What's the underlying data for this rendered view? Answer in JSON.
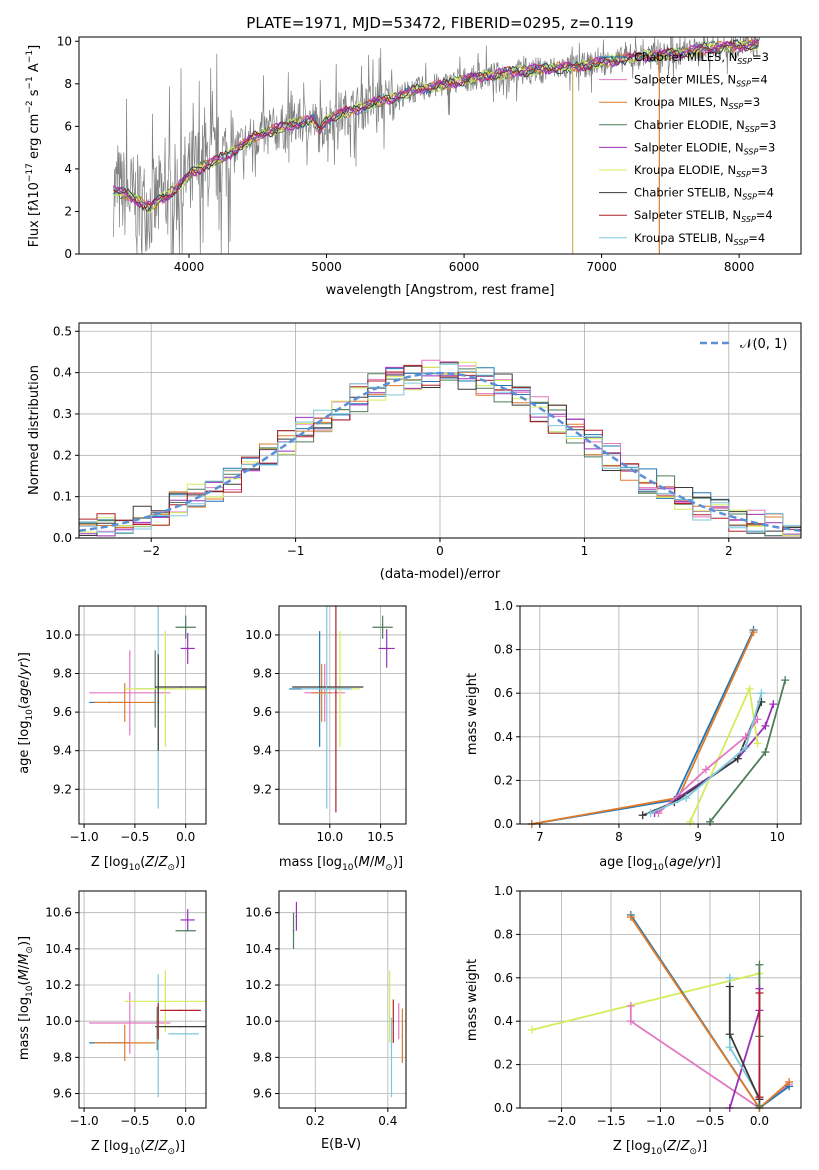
{
  "colors": {
    "chabrier_miles": "#1f77b4",
    "salpeter_miles": "#e377c2",
    "kroupa_miles": "#e07b2a",
    "chabrier_elodie": "#4e7d5b",
    "salpeter_elodie": "#9b30b8",
    "kroupa_elodie": "#d4ec5a",
    "chabrier_stelib": "#3a3a3a",
    "salpeter_stelib": "#b0202a",
    "kroupa_stelib": "#7fc7dd",
    "data_gray": "#808080",
    "normal_curve": "#5b8fd8",
    "grid": "#b0b0b0"
  },
  "chart_data": [
    {
      "id": "spectrum",
      "type": "line",
      "title": "PLATE=1971, MJD=53472, FIBERID=0295, z=0.119",
      "xlabel": "wavelength [Angstrom, rest frame]",
      "ylabel": "Flux [f_λ10^-17 erg cm^-2 s^-1 A^-1]",
      "xlim": [
        3200,
        8450
      ],
      "ylim": [
        0,
        10.2
      ],
      "xticks": [
        "4000",
        "5000",
        "6000",
        "7000",
        "8000"
      ],
      "yticks": [
        "0",
        "2",
        "4",
        "6",
        "8",
        "10"
      ],
      "legend_position": "upper-right",
      "legend": [
        {
          "label": "Chabrier MILES, N_SSP=3",
          "color": "chabrier_miles"
        },
        {
          "label": "Salpeter MILES, N_SSP=4",
          "color": "salpeter_miles"
        },
        {
          "label": "Kroupa MILES, N_SSP=3",
          "color": "kroupa_miles"
        },
        {
          "label": "Chabrier ELODIE, N_SSP=3",
          "color": "chabrier_elodie"
        },
        {
          "label": "Salpeter ELODIE, N_SSP=3",
          "color": "salpeter_elodie"
        },
        {
          "label": "Kroupa ELODIE, N_SSP=3",
          "color": "kroupa_elodie"
        },
        {
          "label": "Chabrier STELIB, N_SSP=4",
          "color": "chabrier_stelib"
        },
        {
          "label": "Salpeter STELIB, N_SSP=4",
          "color": "salpeter_stelib"
        },
        {
          "label": "Kroupa STELIB, N_SSP=4",
          "color": "kroupa_stelib"
        }
      ],
      "continuum": [
        [
          3450,
          3.0
        ],
        [
          3550,
          2.8
        ],
        [
          3650,
          2.4
        ],
        [
          3720,
          2.2
        ],
        [
          3800,
          2.6
        ],
        [
          3900,
          3.0
        ],
        [
          4000,
          3.7
        ],
        [
          4100,
          4.1
        ],
        [
          4200,
          4.4
        ],
        [
          4300,
          4.7
        ],
        [
          4400,
          5.2
        ],
        [
          4500,
          5.6
        ],
        [
          4600,
          5.8
        ],
        [
          4700,
          6.0
        ],
        [
          4800,
          6.2
        ],
        [
          4900,
          6.3
        ],
        [
          4950,
          5.8
        ],
        [
          5000,
          6.3
        ],
        [
          5100,
          6.6
        ],
        [
          5200,
          6.8
        ],
        [
          5300,
          7.0
        ],
        [
          5400,
          7.2
        ],
        [
          5500,
          7.4
        ],
        [
          5600,
          7.6
        ],
        [
          5700,
          7.8
        ],
        [
          5800,
          7.9
        ],
        [
          5900,
          8.0
        ],
        [
          6000,
          8.2
        ],
        [
          6100,
          8.3
        ],
        [
          6200,
          8.4
        ],
        [
          6300,
          8.5
        ],
        [
          6400,
          8.6
        ],
        [
          6500,
          8.65
        ],
        [
          6600,
          8.7
        ],
        [
          6700,
          8.75
        ],
        [
          6800,
          8.8
        ],
        [
          6900,
          8.9
        ],
        [
          7000,
          9.0
        ],
        [
          7100,
          9.1
        ],
        [
          7200,
          9.2
        ],
        [
          7300,
          9.3
        ],
        [
          7400,
          9.35
        ],
        [
          7600,
          9.5
        ],
        [
          7800,
          9.7
        ],
        [
          8000,
          9.8
        ],
        [
          8150,
          9.85
        ]
      ]
    },
    {
      "id": "residuals",
      "type": "histogram",
      "xlabel": "(data-model)/error",
      "ylabel": "Normed distribution",
      "xlim": [
        -2.5,
        2.5
      ],
      "ylim": [
        0,
        0.52
      ],
      "xticks": [
        "−2",
        "−1",
        "0",
        "1",
        "2"
      ],
      "yticks": [
        "0.0",
        "0.1",
        "0.2",
        "0.3",
        "0.4",
        "0.5"
      ],
      "legend_position": "upper-right",
      "legend": [
        {
          "label": "𝒩(0, 1)",
          "color": "normal_curve"
        }
      ],
      "bin_width": 0.125
    },
    {
      "id": "age_vs_Z",
      "type": "scatter",
      "xlabel": "Z [log10(Z/Z⊙)]",
      "ylabel": "age  [log10(age/yr)]",
      "xlim": [
        -1.05,
        0.2
      ],
      "ylim": [
        9.02,
        10.15
      ],
      "xticks": [
        "−1.0",
        "−0.5",
        "0.0"
      ],
      "yticks": [
        "9.2",
        "9.4",
        "9.6",
        "9.8",
        "10.0"
      ],
      "points": [
        {
          "x": -0.75,
          "y": 9.65,
          "xerr": 0.2,
          "yerr": 0.0,
          "c": "chabrier_miles"
        },
        {
          "x": -0.55,
          "y": 9.7,
          "xerr": 0.4,
          "yerr": 0.22,
          "c": "salpeter_miles"
        },
        {
          "x": -0.6,
          "y": 9.65,
          "xerr": 0.3,
          "yerr": 0.1,
          "c": "kroupa_miles"
        },
        {
          "x": -0.3,
          "y": 9.72,
          "xerr": 0.2,
          "yerr": 0.2,
          "c": "chabrier_elodie"
        },
        {
          "x": 0.02,
          "y": 9.93,
          "xerr": 0.07,
          "yerr": 0.08,
          "c": "salpeter_elodie"
        },
        {
          "x": -0.2,
          "y": 9.72,
          "xerr": 0.4,
          "yerr": 0.3,
          "c": "kroupa_elodie"
        },
        {
          "x": -0.05,
          "y": 9.73,
          "xerr": 0.25,
          "yerr": 0.0,
          "c": "chabrier_stelib"
        },
        {
          "x": 0.0,
          "y": 10.04,
          "xerr": 0.1,
          "yerr": 0.06,
          "c": "chabrier_elodie"
        },
        {
          "x": -0.27,
          "y": 9.7,
          "xerr": 0.0,
          "yerr": 0.6,
          "c": "kroupa_stelib"
        },
        {
          "x": -0.27,
          "y": 9.65,
          "xerr": 0.0,
          "yerr": 0.25,
          "c": "chabrier_stelib"
        }
      ]
    },
    {
      "id": "age_vs_mass",
      "type": "scatter",
      "xlabel": "mass [log10(M/M⊙)]",
      "ylabel": "",
      "xlim": [
        9.5,
        10.75
      ],
      "ylim": [
        9.02,
        10.15
      ],
      "xticks": [
        "10.0",
        "10.5"
      ],
      "yticks": [
        "9.2",
        "9.4",
        "9.6",
        "9.8",
        "10.0"
      ],
      "points": [
        {
          "x": 9.9,
          "y": 9.72,
          "xerr": 0.3,
          "yerr": 0.3,
          "c": "chabrier_miles"
        },
        {
          "x": 9.95,
          "y": 9.7,
          "xerr": 0.2,
          "yerr": 0.15,
          "c": "salpeter_miles"
        },
        {
          "x": 9.92,
          "y": 9.7,
          "xerr": 0.1,
          "yerr": 0.15,
          "c": "kroupa_miles"
        },
        {
          "x": 10.1,
          "y": 9.72,
          "xerr": 0.2,
          "yerr": 0.3,
          "c": "kroupa_elodie"
        },
        {
          "x": 9.98,
          "y": 9.73,
          "xerr": 0.35,
          "yerr": 0.0,
          "c": "chabrier_stelib"
        },
        {
          "x": 10.06,
          "y": 9.7,
          "xerr": 0.0,
          "yerr": 0.62,
          "c": "salpeter_stelib"
        },
        {
          "x": 9.97,
          "y": 9.72,
          "xerr": 0.25,
          "yerr": 0.62,
          "c": "kroupa_stelib"
        },
        {
          "x": 10.56,
          "y": 9.93,
          "xerr": 0.08,
          "yerr": 0.1,
          "c": "salpeter_elodie"
        },
        {
          "x": 10.52,
          "y": 10.04,
          "xerr": 0.1,
          "yerr": 0.06,
          "c": "chabrier_elodie"
        }
      ]
    },
    {
      "id": "massweight_vs_age",
      "type": "line",
      "xlabel": "age  [log10(age/yr)]",
      "ylabel": "mass weight",
      "xlim": [
        6.75,
        10.3
      ],
      "ylim": [
        0,
        1.0
      ],
      "xticks": [
        "7",
        "8",
        "9",
        "10"
      ],
      "yticks": [
        "0.0",
        "0.2",
        "0.4",
        "0.6",
        "0.8",
        "1.0"
      ],
      "series": [
        {
          "c": "chabrier_miles",
          "pts": [
            [
              6.9,
              0.0
            ],
            [
              8.7,
              0.11
            ],
            [
              9.7,
              0.89
            ]
          ]
        },
        {
          "c": "kroupa_miles",
          "pts": [
            [
              6.9,
              0.0
            ],
            [
              8.75,
              0.12
            ],
            [
              9.7,
              0.88
            ]
          ]
        },
        {
          "c": "chabrier_elodie",
          "pts": [
            [
              9.15,
              0.01
            ],
            [
              9.85,
              0.33
            ],
            [
              10.1,
              0.66
            ]
          ]
        },
        {
          "c": "salpeter_elodie",
          "pts": [
            [
              8.45,
              0.05
            ],
            [
              9.5,
              0.3
            ],
            [
              9.85,
              0.45
            ],
            [
              9.95,
              0.55
            ]
          ]
        },
        {
          "c": "kroupa_elodie",
          "pts": [
            [
              8.9,
              0.01
            ],
            [
              9.65,
              0.62
            ],
            [
              9.75,
              0.37
            ]
          ]
        },
        {
          "c": "chabrier_stelib",
          "pts": [
            [
              8.3,
              0.04
            ],
            [
              8.7,
              0.1
            ],
            [
              9.5,
              0.3
            ],
            [
              9.8,
              0.56
            ]
          ]
        },
        {
          "c": "salpeter_miles",
          "pts": [
            [
              8.5,
              0.05
            ],
            [
              9.1,
              0.25
            ],
            [
              9.6,
              0.4
            ],
            [
              9.75,
              0.48
            ]
          ]
        },
        {
          "c": "kroupa_stelib",
          "pts": [
            [
              8.4,
              0.05
            ],
            [
              8.85,
              0.12
            ],
            [
              9.6,
              0.35
            ],
            [
              9.8,
              0.6
            ]
          ]
        }
      ]
    },
    {
      "id": "mass_vs_Z",
      "type": "scatter",
      "xlabel": "Z [log10(Z/Z⊙)]",
      "ylabel": "mass [log10(M/M⊙)]",
      "xlim": [
        -1.05,
        0.2
      ],
      "ylim": [
        9.52,
        10.72
      ],
      "xticks": [
        "−1.0",
        "−0.5",
        "0.0"
      ],
      "yticks": [
        "9.6",
        "9.8",
        "10.0",
        "10.2",
        "10.4",
        "10.6"
      ],
      "points": [
        {
          "x": -0.75,
          "y": 9.88,
          "xerr": 0.2,
          "yerr": 0.0,
          "c": "chabrier_miles"
        },
        {
          "x": -0.55,
          "y": 9.99,
          "xerr": 0.4,
          "yerr": 0.17,
          "c": "salpeter_miles"
        },
        {
          "x": -0.6,
          "y": 9.88,
          "xerr": 0.3,
          "yerr": 0.1,
          "c": "kroupa_miles"
        },
        {
          "x": -0.28,
          "y": 9.96,
          "xerr": 0.0,
          "yerr": 0.12,
          "c": "chabrier_elodie"
        },
        {
          "x": 0.02,
          "y": 10.56,
          "xerr": 0.07,
          "yerr": 0.06,
          "c": "salpeter_elodie"
        },
        {
          "x": -0.2,
          "y": 10.11,
          "xerr": 0.4,
          "yerr": 0.17,
          "c": "kroupa_elodie"
        },
        {
          "x": -0.05,
          "y": 9.97,
          "xerr": 0.25,
          "yerr": 0.0,
          "c": "chabrier_stelib"
        },
        {
          "x": -0.05,
          "y": 10.06,
          "xerr": 0.2,
          "yerr": 0.0,
          "c": "salpeter_stelib"
        },
        {
          "x": 0.0,
          "y": 10.5,
          "xerr": 0.1,
          "yerr": 0.0,
          "c": "chabrier_elodie"
        },
        {
          "x": -0.27,
          "y": 9.92,
          "xerr": 0.0,
          "yerr": 0.34,
          "c": "kroupa_stelib"
        },
        {
          "x": -0.27,
          "y": 10.0,
          "xerr": 0.0,
          "yerr": 0.1,
          "c": "salpeter_stelib"
        },
        {
          "x": -0.02,
          "y": 9.93,
          "xerr": 0.15,
          "yerr": 0.0,
          "c": "kroupa_stelib"
        }
      ]
    },
    {
      "id": "mass_vs_ebv",
      "type": "scatter",
      "xlabel": "E(B-V)",
      "ylabel": "",
      "xlim": [
        0.1,
        0.45
      ],
      "ylim": [
        9.52,
        10.72
      ],
      "xticks": [
        "0.2",
        "0.4"
      ],
      "yticks": [
        "9.6",
        "9.8",
        "10.0",
        "10.2",
        "10.4",
        "10.6"
      ],
      "points": [
        {
          "x": 0.14,
          "y": 10.5,
          "xerr": 0,
          "yerr": 0.1,
          "c": "chabrier_elodie"
        },
        {
          "x": 0.148,
          "y": 10.58,
          "xerr": 0,
          "yerr": 0.08,
          "c": "salpeter_elodie"
        },
        {
          "x": 0.405,
          "y": 10.08,
          "xerr": 0,
          "yerr": 0.2,
          "c": "kroupa_elodie"
        },
        {
          "x": 0.41,
          "y": 9.8,
          "xerr": 0,
          "yerr": 0.22,
          "c": "kroupa_stelib"
        },
        {
          "x": 0.415,
          "y": 10.0,
          "xerr": 0,
          "yerr": 0.12,
          "c": "salpeter_stelib"
        },
        {
          "x": 0.43,
          "y": 10.0,
          "xerr": 0,
          "yerr": 0.1,
          "c": "salpeter_miles"
        },
        {
          "x": 0.44,
          "y": 9.92,
          "xerr": 0,
          "yerr": 0.15,
          "c": "kroupa_miles"
        }
      ]
    },
    {
      "id": "massweight_vs_Z",
      "type": "line",
      "xlabel": "Z [log10(Z/Z⊙)]",
      "ylabel": "mass weight",
      "xlim": [
        -2.42,
        0.42
      ],
      "ylim": [
        0,
        1.0
      ],
      "xticks": [
        "−2.0",
        "−1.5",
        "−1.0",
        "−0.5",
        "0.0"
      ],
      "yticks": [
        "0.0",
        "0.2",
        "0.4",
        "0.6",
        "0.8",
        "1.0"
      ],
      "series": [
        {
          "c": "kroupa_elodie",
          "pts": [
            [
              -2.3,
              0.36
            ],
            [
              0.0,
              0.62
            ],
            [
              0.0,
              0.0
            ]
          ]
        },
        {
          "c": "salpeter_miles",
          "pts": [
            [
              -1.3,
              0.47
            ],
            [
              -1.3,
              0.4
            ],
            [
              0.0,
              0.0
            ],
            [
              0.3,
              0.11
            ]
          ]
        },
        {
          "c": "chabrier_miles",
          "pts": [
            [
              -1.3,
              0.89
            ],
            [
              0.0,
              0.0
            ],
            [
              0.3,
              0.1
            ]
          ]
        },
        {
          "c": "kroupa_miles",
          "pts": [
            [
              -1.3,
              0.88
            ],
            [
              0.0,
              0.0
            ],
            [
              0.3,
              0.12
            ]
          ]
        },
        {
          "c": "chabrier_elodie",
          "pts": [
            [
              0.0,
              0.66
            ],
            [
              0.0,
              0.33
            ],
            [
              0.0,
              0.01
            ]
          ]
        },
        {
          "c": "salpeter_elodie",
          "pts": [
            [
              -0.3,
              0.0
            ],
            [
              0.0,
              0.45
            ],
            [
              0.0,
              0.55
            ]
          ]
        },
        {
          "c": "kroupa_stelib",
          "pts": [
            [
              -0.3,
              0.6
            ],
            [
              -0.3,
              0.28
            ],
            [
              0.0,
              0.05
            ]
          ]
        },
        {
          "c": "chabrier_stelib",
          "pts": [
            [
              -0.3,
              0.56
            ],
            [
              -0.3,
              0.34
            ],
            [
              0.0,
              0.04
            ]
          ]
        },
        {
          "c": "salpeter_stelib",
          "pts": [
            [
              0.0,
              0.53
            ],
            [
              0.0,
              0.05
            ]
          ]
        }
      ]
    }
  ]
}
